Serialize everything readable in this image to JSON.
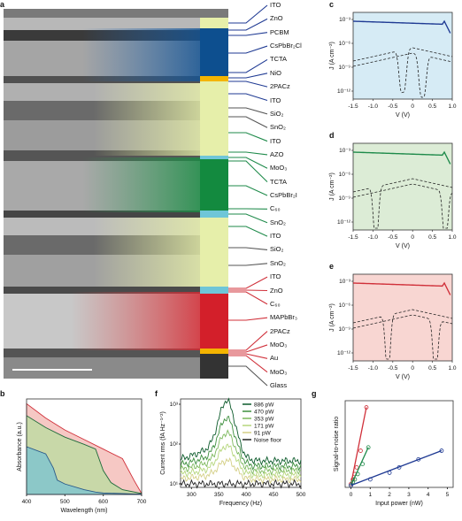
{
  "panels": {
    "a": "a",
    "b": "b",
    "c": "c",
    "d": "d",
    "e": "e",
    "f": "f",
    "g": "g"
  },
  "layers": [
    {
      "label": "ITO",
      "color": "#1f3a93"
    },
    {
      "label": "ZnO",
      "color": "#1f3a93"
    },
    {
      "label": "PCBM",
      "color": "#1f3a93"
    },
    {
      "label": "CsPbBr₂Cl",
      "color": "#1f3a93"
    },
    {
      "label": "TCTA",
      "color": "#1f3a93"
    },
    {
      "label": "NiO",
      "color": "#1f3a93"
    },
    {
      "label": "2PACz",
      "color": "#1f3a93"
    },
    {
      "label": "ITO",
      "color": "#1f3a93"
    },
    {
      "label": "SiO₂",
      "color": "#555555"
    },
    {
      "label": "SnO₂",
      "color": "#555555"
    },
    {
      "label": "ITO",
      "color": "#1e8a4a"
    },
    {
      "label": "AZO",
      "color": "#1e8a4a"
    },
    {
      "label": "MoO₃",
      "color": "#1e8a4a"
    },
    {
      "label": "TCTA",
      "color": "#1e8a4a"
    },
    {
      "label": "CsPbBr₂I",
      "color": "#1e8a4a"
    },
    {
      "label": "C₆₀",
      "color": "#1e8a4a"
    },
    {
      "label": "SnO₂",
      "color": "#1e8a4a"
    },
    {
      "label": "ITO",
      "color": "#1e8a4a"
    },
    {
      "label": "SiO₂",
      "color": "#555555"
    },
    {
      "label": "SnO₂",
      "color": "#555555"
    },
    {
      "label": "ITO",
      "color": "#d0303a"
    },
    {
      "label": "ZnO",
      "color": "#d0303a"
    },
    {
      "label": "C₆₀",
      "color": "#d0303a"
    },
    {
      "label": "MAPbBr₃",
      "color": "#d0303a"
    },
    {
      "label": "2PACz",
      "color": "#d0303a"
    },
    {
      "label": "MoO₃",
      "color": "#d0303a"
    },
    {
      "label": "Au",
      "color": "#d0303a"
    },
    {
      "label": "MoO₃",
      "color": "#d0303a"
    },
    {
      "label": "Glass",
      "color": "#555555"
    }
  ],
  "jv": {
    "xlabel": "V (V)",
    "ylabel": "J (A cm⁻²)",
    "xticks": [
      "-1.5",
      "-1.0",
      "-0.5",
      "0",
      "0.5",
      "1.0"
    ],
    "yticks": [
      "10⁻³",
      "10⁻⁶",
      "10⁻⁹",
      "10⁻¹²"
    ]
  },
  "colors": {
    "blue": "#1f3a93",
    "green": "#1e8a4a",
    "red": "#d0303a"
  },
  "chart_data": [
    {
      "panel": "b",
      "type": "area",
      "xlabel": "Wavelength (nm)",
      "ylabel": "Absorbance (a.u.)",
      "xlim": [
        400,
        700
      ],
      "xticks": [
        "400",
        "500",
        "600",
        "700"
      ],
      "series": [
        {
          "x": [
            400,
            450,
            470,
            480,
            500,
            550,
            580,
            600,
            650,
            680,
            700
          ],
          "values": [
            1.0,
            0.85,
            0.55,
            0.3,
            0.22,
            0.1,
            0.05,
            0.03,
            0.02,
            0.01,
            0.01
          ]
        },
        {
          "x": [
            400,
            450,
            500,
            550,
            580,
            600,
            620,
            650,
            700
          ],
          "values": [
            1.65,
            1.4,
            1.2,
            1.05,
            0.95,
            0.5,
            0.25,
            0.1,
            0.02
          ]
        },
        {
          "x": [
            400,
            450,
            500,
            550,
            600,
            650,
            680,
            700
          ],
          "values": [
            1.9,
            1.6,
            1.35,
            1.15,
            0.95,
            0.75,
            0.3,
            0.02
          ]
        }
      ]
    },
    {
      "panel": "f",
      "type": "line",
      "xlabel": "Frequency (Hz)",
      "ylabel": "Current rms (fA Hz⁻¹ᐟ²)",
      "xlim": [
        280,
        500
      ],
      "xticks": [
        "300",
        "350",
        "400",
        "450",
        "500"
      ],
      "yticks": [
        "10³",
        "10²",
        "10¹"
      ],
      "series": [
        {
          "name": "886 pW",
          "color": "#0b5a2a"
        },
        {
          "name": "470 pW",
          "color": "#3d8f3d"
        },
        {
          "name": "353 pW",
          "color": "#7cb85c"
        },
        {
          "name": "171 pW",
          "color": "#b5d67c"
        },
        {
          "name": "91 pW",
          "color": "#d4cf85"
        },
        {
          "name": "Noise floor",
          "color": "#222222"
        }
      ]
    },
    {
      "panel": "g",
      "type": "scatter",
      "xlabel": "Input power (nW)",
      "ylabel": "Signal-to-noise ratio",
      "xticks": [
        "0",
        "1",
        "2",
        "3",
        "4",
        "5"
      ],
      "series": [
        {
          "color": "#d0303a",
          "x": [
            0,
            0.1,
            0.2,
            0.3,
            0.5,
            0.8
          ],
          "values": [
            5,
            12,
            20,
            30,
            55,
            120
          ]
        },
        {
          "color": "#1e8a4a",
          "x": [
            0,
            0.1,
            0.2,
            0.35,
            0.6,
            0.9
          ],
          "values": [
            3,
            8,
            12,
            20,
            35,
            60
          ]
        },
        {
          "color": "#1f3a93",
          "x": [
            0,
            1,
            2,
            2.5,
            3.5,
            4.7
          ],
          "values": [
            3,
            12,
            22,
            30,
            42,
            55
          ]
        }
      ]
    }
  ]
}
